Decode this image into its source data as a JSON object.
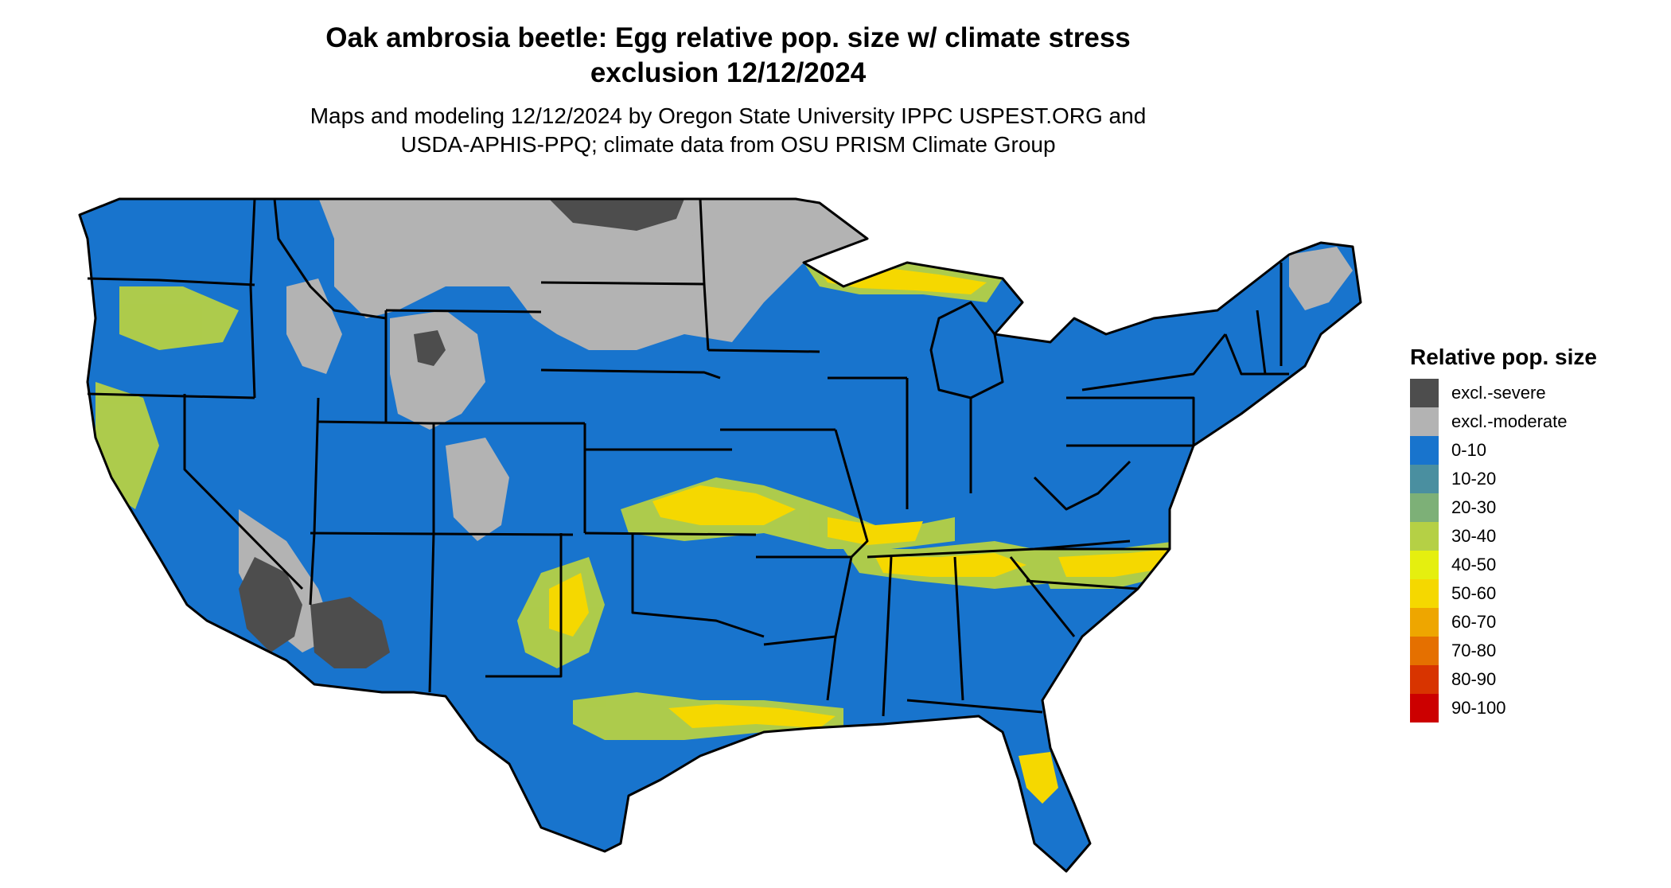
{
  "title_line1": "Oak ambrosia beetle: Egg relative pop. size w/ climate stress",
  "title_line2": "exclusion 12/12/2024",
  "subtitle_line1": "Maps and modeling 12/12/2024 by Oregon State University IPPC USPEST.ORG and",
  "subtitle_line2": "USDA-APHIS-PPQ; climate data from OSU PRISM Climate Group",
  "legend": {
    "title": "Relative pop. size",
    "items": [
      {
        "label": "excl.-severe",
        "color": "#4d4d4d"
      },
      {
        "label": "excl.-moderate",
        "color": "#b3b3b3"
      },
      {
        "label": "0-10",
        "color": "#1874cd"
      },
      {
        "label": "10-20",
        "color": "#4a8fa0"
      },
      {
        "label": "20-30",
        "color": "#7db077"
      },
      {
        "label": "30-40",
        "color": "#b5d045"
      },
      {
        "label": "40-50",
        "color": "#e5ef0f"
      },
      {
        "label": "50-60",
        "color": "#f5d800"
      },
      {
        "label": "60-70",
        "color": "#eea600"
      },
      {
        "label": "70-80",
        "color": "#e57000"
      },
      {
        "label": "80-90",
        "color": "#d83400"
      },
      {
        "label": "90-100",
        "color": "#cc0000"
      }
    ]
  },
  "colors": {
    "base": "#1874cd",
    "exclusion_severe": "#4d4d4d",
    "exclusion_moderate": "#b3b3b3",
    "suitable_high": "#f5d800",
    "suitable_mid": "#b5d045",
    "border": "#000000"
  }
}
